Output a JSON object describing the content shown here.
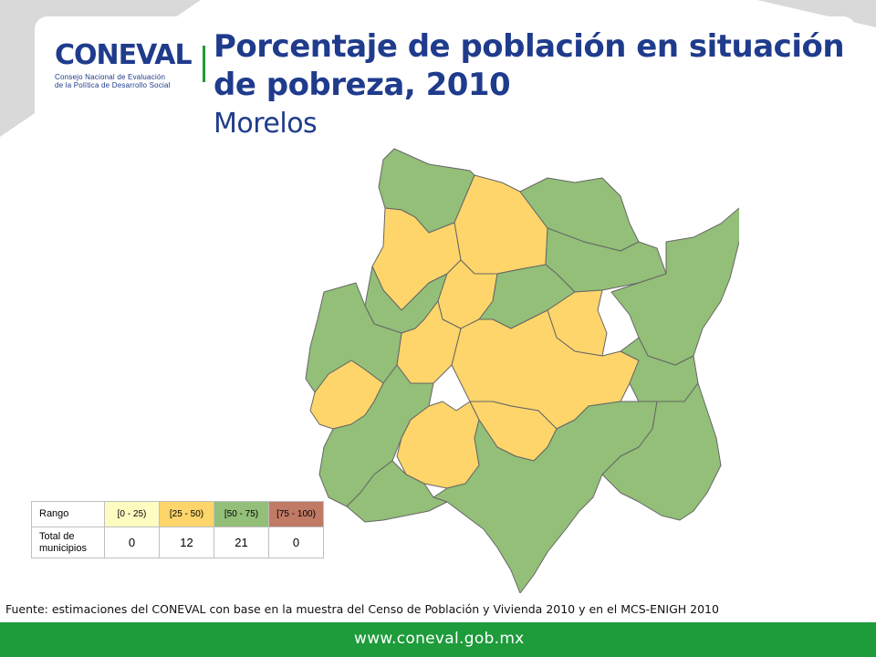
{
  "header": {
    "logo_word": "CONEVAL",
    "logo_sub_line1": "Consejo Nacional de Evaluación",
    "logo_sub_line2": "de la Política de Desarrollo Social",
    "title_line1": "Porcentaje de población en situación",
    "title_line2": "de pobreza, 2010",
    "subtitle": "Morelos"
  },
  "colors": {
    "range_0_25": "#fffcc2",
    "range_25_50": "#fdd56a",
    "range_50_75": "#93bf78",
    "range_75_100": "#c07a66",
    "brand_blue": "#1f3b8c",
    "brand_green": "#1e9b3b"
  },
  "legend": {
    "row_label_range": "Rango",
    "row_label_total_line1": "Total de",
    "row_label_total_line2": "municipios",
    "ranges": [
      "[0 - 25)",
      "[25 - 50)",
      "[50 - 75)",
      "[75 - 100)"
    ],
    "totals": [
      "0",
      "12",
      "21",
      "0"
    ]
  },
  "source": "Fuente: estimaciones del CONEVAL con base en la muestra del Censo de Población y Vivienda 2010 y en el MCS-ENIGH 2010",
  "footer": {
    "url": "www.coneval.gob.mx"
  }
}
